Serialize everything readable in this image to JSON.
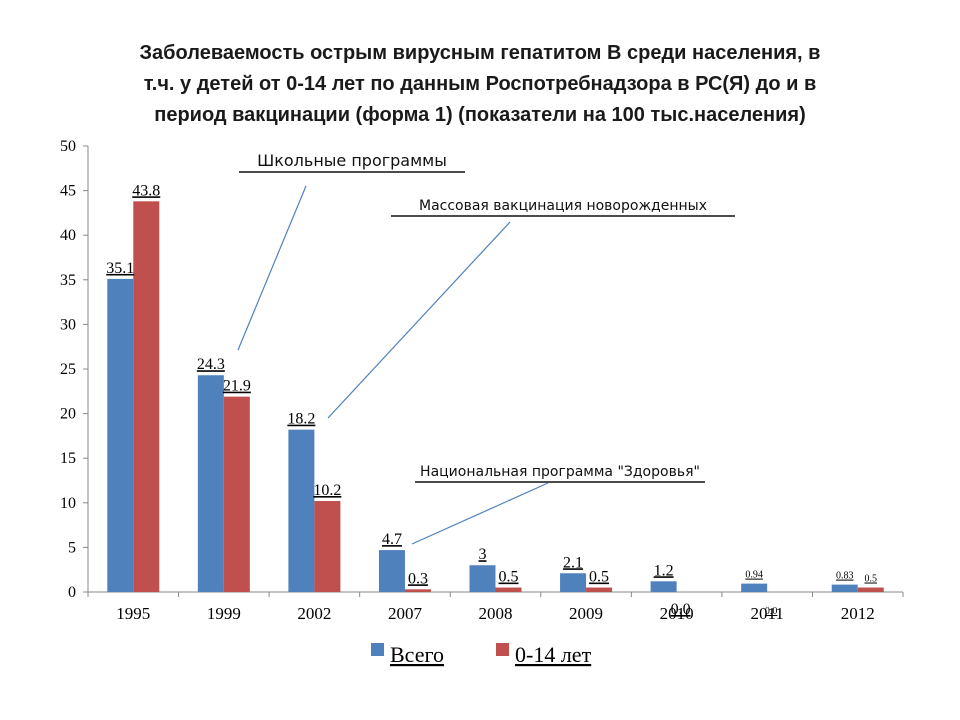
{
  "title_lines": [
    "Заболеваемость острым вирусным гепатитом В среди населения, в",
    "т.ч. у детей от 0-14 лет по данным Роспотребнадзора в РС(Я) до и в",
    "период вакцинации  (форма 1) (показатели на 100 тыс.населения)"
  ],
  "chart_data": {
    "type": "bar",
    "categories": [
      "1995",
      "1999",
      "2002",
      "2007",
      "2008",
      "2009",
      "2010",
      "2011",
      "2012"
    ],
    "series": [
      {
        "name": "Всего",
        "color": "#4f81bd",
        "values": [
          35.1,
          24.3,
          18.2,
          4.7,
          3,
          2.1,
          1.2,
          0.94,
          0.83
        ],
        "labels": [
          "35.1",
          "24.3",
          "18.2",
          "4.7",
          "3",
          "2.1",
          "1.2",
          "0.94",
          "0.83"
        ]
      },
      {
        "name": "0-14 лет",
        "color": "#c0504d",
        "values": [
          43.8,
          21.9,
          10.2,
          0.3,
          0.5,
          0.5,
          0.0,
          0.0,
          0.5
        ],
        "labels": [
          "43.8",
          "21.9",
          "10.2",
          "0.3",
          "0.5",
          "0.5",
          "0.0",
          "0.0",
          "0.5"
        ]
      }
    ],
    "ylim": [
      0,
      50
    ],
    "yticks": [
      0,
      5,
      10,
      15,
      20,
      25,
      30,
      35,
      40,
      45,
      50
    ],
    "grid": false,
    "legend": "bottom",
    "annotations": [
      {
        "text": "Школьные программы",
        "points_to": "1999"
      },
      {
        "text": "Массовая вакцинация новорожденных",
        "points_to": "2002"
      },
      {
        "text": "Национальная программа \"Здоровья\"",
        "points_to": "2007"
      }
    ]
  }
}
